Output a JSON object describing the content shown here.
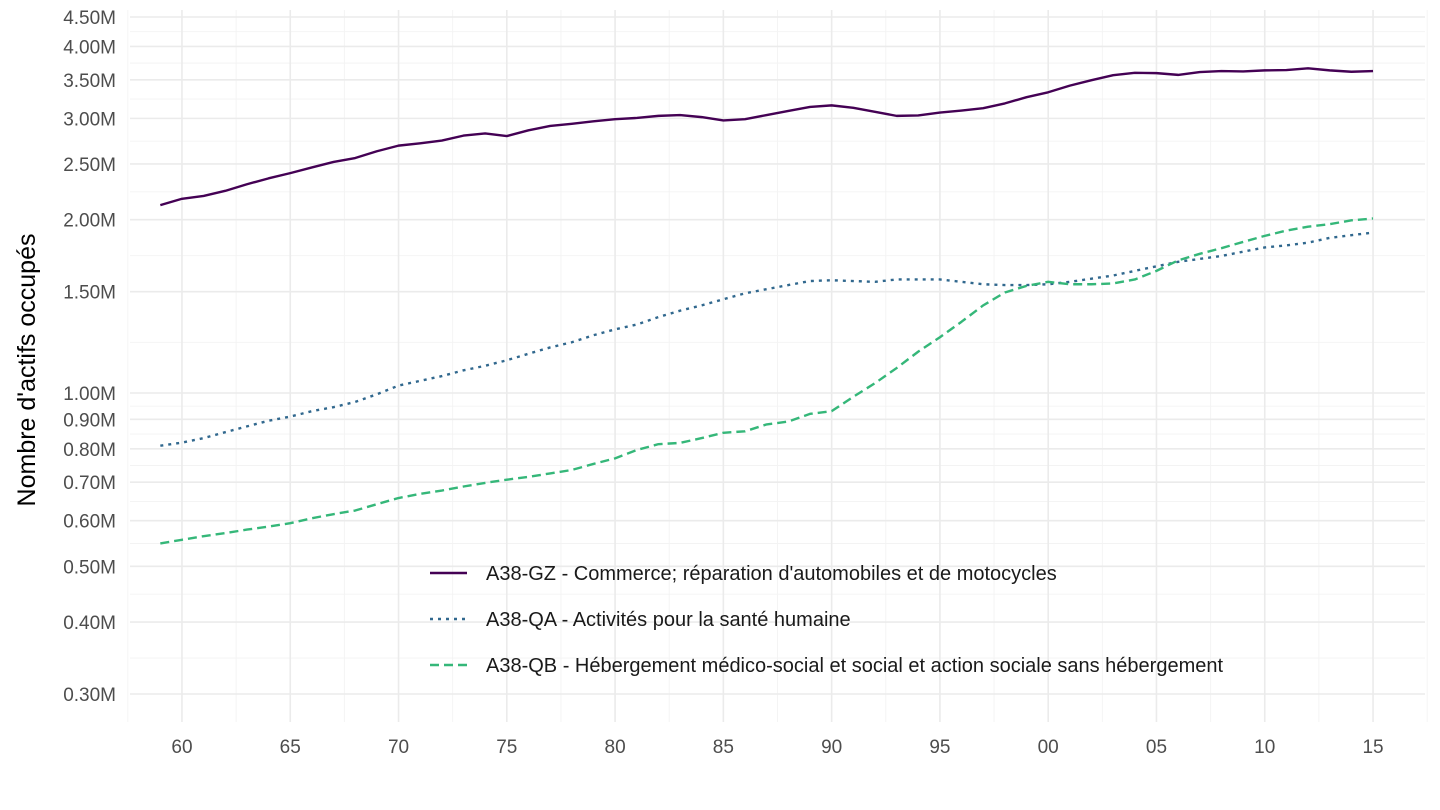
{
  "chart_data": {
    "type": "line",
    "title": "",
    "xlabel": "",
    "ylabel": "Nombre d'actifs occupés",
    "y_scale": "log",
    "ylim": [
      300000,
      4500000
    ],
    "xlim": [
      1957.6,
      2017.4
    ],
    "grid": true,
    "legend_position": "bottom-center inside plot",
    "x_ticks": [
      {
        "value": 1960,
        "label": "60"
      },
      {
        "value": 1965,
        "label": "65"
      },
      {
        "value": 1970,
        "label": "70"
      },
      {
        "value": 1975,
        "label": "75"
      },
      {
        "value": 1980,
        "label": "80"
      },
      {
        "value": 1985,
        "label": "85"
      },
      {
        "value": 1990,
        "label": "90"
      },
      {
        "value": 1995,
        "label": "95"
      },
      {
        "value": 2000,
        "label": "00"
      },
      {
        "value": 2005,
        "label": "05"
      },
      {
        "value": 2010,
        "label": "10"
      },
      {
        "value": 2015,
        "label": "15"
      }
    ],
    "y_ticks": [
      {
        "value": 300000,
        "label": "0.30M"
      },
      {
        "value": 400000,
        "label": "0.40M"
      },
      {
        "value": 500000,
        "label": "0.50M"
      },
      {
        "value": 600000,
        "label": "0.60M"
      },
      {
        "value": 700000,
        "label": "0.70M"
      },
      {
        "value": 800000,
        "label": "0.80M"
      },
      {
        "value": 900000,
        "label": "0.90M"
      },
      {
        "value": 1000000,
        "label": "1.00M"
      },
      {
        "value": 1500000,
        "label": "1.50M"
      },
      {
        "value": 2000000,
        "label": "2.00M"
      },
      {
        "value": 2500000,
        "label": "2.50M"
      },
      {
        "value": 3000000,
        "label": "3.00M"
      },
      {
        "value": 3500000,
        "label": "3.50M"
      },
      {
        "value": 4000000,
        "label": "4.00M"
      },
      {
        "value": 4500000,
        "label": "4.50M"
      }
    ],
    "x": [
      1959,
      1960,
      1961,
      1962,
      1963,
      1964,
      1965,
      1966,
      1967,
      1968,
      1969,
      1970,
      1971,
      1972,
      1973,
      1974,
      1975,
      1976,
      1977,
      1978,
      1979,
      1980,
      1981,
      1982,
      1983,
      1984,
      1985,
      1986,
      1987,
      1988,
      1989,
      1990,
      1991,
      1992,
      1993,
      1994,
      1995,
      1996,
      1997,
      1998,
      1999,
      2000,
      2001,
      2002,
      2003,
      2004,
      2005,
      2006,
      2007,
      2008,
      2009,
      2010,
      2011,
      2012,
      2013,
      2014,
      2015
    ],
    "series": [
      {
        "name": "A38-GZ - Commerce; réparation d'automobiles et de motocycles",
        "color": "#440154",
        "dash": "solid",
        "values": [
          2120000,
          2175000,
          2200000,
          2245000,
          2305000,
          2360000,
          2410000,
          2465000,
          2520000,
          2560000,
          2630000,
          2690000,
          2715000,
          2745000,
          2800000,
          2825000,
          2795000,
          2860000,
          2910000,
          2935000,
          2965000,
          2990000,
          3005000,
          3030000,
          3040000,
          3015000,
          2975000,
          2990000,
          3040000,
          3090000,
          3140000,
          3160000,
          3130000,
          3080000,
          3030000,
          3035000,
          3070000,
          3095000,
          3125000,
          3185000,
          3265000,
          3330000,
          3420000,
          3495000,
          3565000,
          3600000,
          3595000,
          3570000,
          3610000,
          3625000,
          3620000,
          3635000,
          3640000,
          3665000,
          3635000,
          3615000,
          3625000
        ]
      },
      {
        "name": "A38-QA - Activités pour la santé humaine",
        "color": "#31688E",
        "dash": "dotted",
        "values": [
          810000,
          820000,
          835000,
          855000,
          875000,
          895000,
          910000,
          930000,
          945000,
          965000,
          995000,
          1030000,
          1050000,
          1070000,
          1095000,
          1115000,
          1140000,
          1170000,
          1200000,
          1225000,
          1260000,
          1290000,
          1315000,
          1355000,
          1390000,
          1420000,
          1455000,
          1490000,
          1515000,
          1540000,
          1565000,
          1570000,
          1565000,
          1560000,
          1575000,
          1575000,
          1575000,
          1560000,
          1545000,
          1540000,
          1540000,
          1545000,
          1560000,
          1580000,
          1600000,
          1630000,
          1660000,
          1690000,
          1710000,
          1730000,
          1760000,
          1790000,
          1805000,
          1825000,
          1860000,
          1880000,
          1900000
        ]
      },
      {
        "name": "A38-QB - Hébergement médico-social et social et action sociale sans hébergement",
        "color": "#35B779",
        "dash": "dashed",
        "values": [
          548000,
          556000,
          564000,
          571000,
          579000,
          586000,
          594000,
          606000,
          616000,
          625000,
          641000,
          657000,
          668000,
          677000,
          688000,
          698000,
          707000,
          715000,
          725000,
          735000,
          753000,
          770000,
          796000,
          815000,
          819000,
          835000,
          853000,
          858000,
          882000,
          892000,
          920000,
          930000,
          985000,
          1040000,
          1105000,
          1180000,
          1250000,
          1330000,
          1420000,
          1495000,
          1535000,
          1560000,
          1545000,
          1545000,
          1550000,
          1575000,
          1630000,
          1700000,
          1745000,
          1785000,
          1830000,
          1875000,
          1915000,
          1945000,
          1965000,
          1995000,
          2010000
        ]
      }
    ]
  }
}
